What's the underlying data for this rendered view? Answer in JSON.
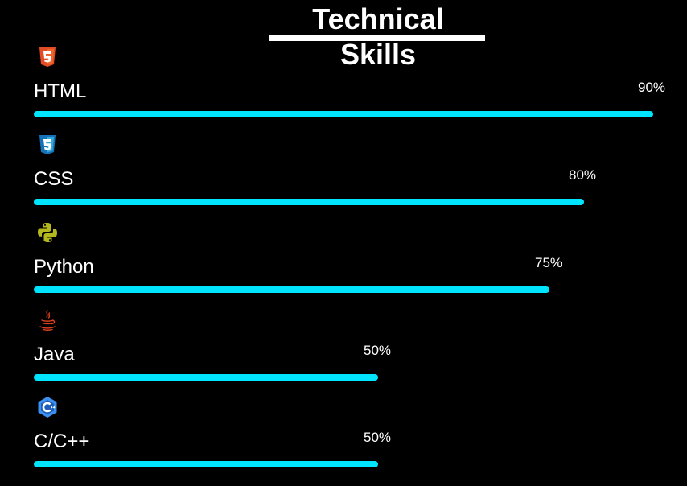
{
  "header": {
    "title": "Technical Skills"
  },
  "skills": [
    {
      "name": "HTML",
      "percent_label": "90%",
      "level": 0.9,
      "icon": "html5-icon",
      "icon_color": "#e34c26"
    },
    {
      "name": "CSS",
      "percent_label": "80%",
      "level": 0.8,
      "icon": "css3-icon",
      "icon_color": "#1572b6"
    },
    {
      "name": "Python",
      "percent_label": "75%",
      "level": 0.75,
      "icon": "python-icon",
      "icon_color": "#b5b81c"
    },
    {
      "name": "Java",
      "percent_label": "50%",
      "level": 0.5,
      "icon": "java-icon",
      "icon_color": "#e0401e"
    },
    {
      "name": "C/C++",
      "percent_label": "50%",
      "level": 0.5,
      "icon": "c-cpp-icon",
      "icon_color": "#3d8ff0"
    }
  ],
  "colors": {
    "bar": "#00e5ff",
    "background": "#000000",
    "text": "#ffffff"
  }
}
